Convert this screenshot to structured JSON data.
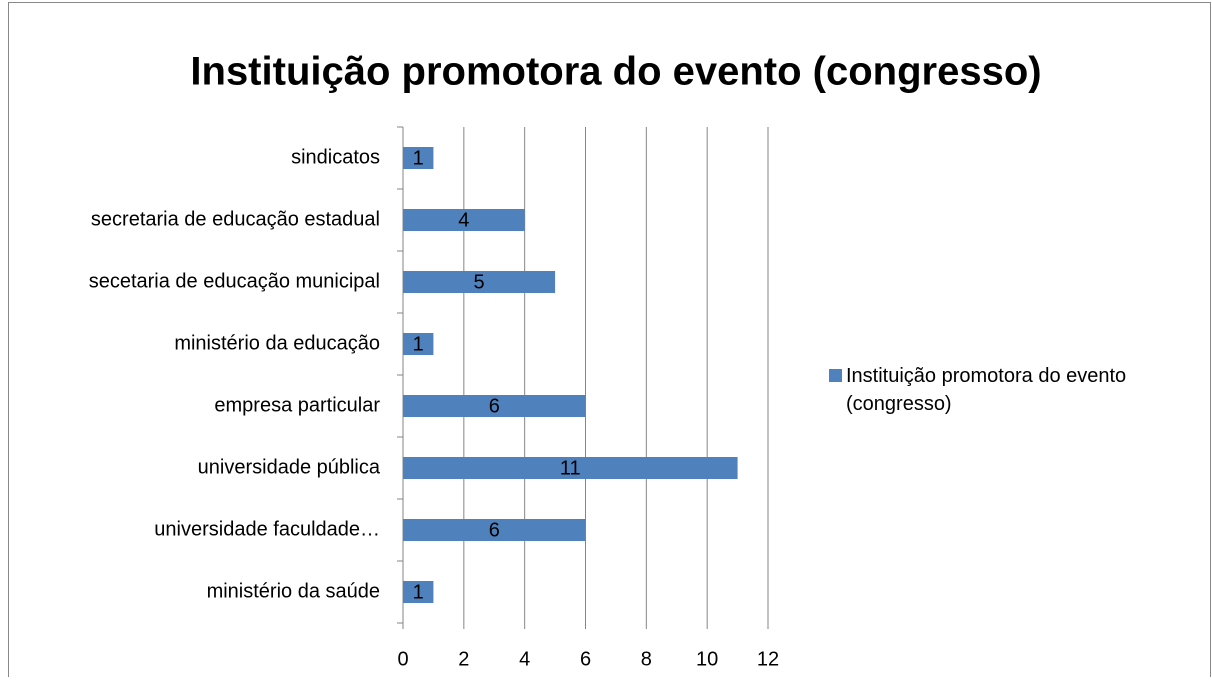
{
  "chart_data": {
    "type": "barh",
    "title": "Instituição promotora do evento (congresso)",
    "categories": [
      "sindicatos",
      "secretaria de educação estadual",
      "secetaria de educação municipal",
      "ministério da educação",
      "empresa particular",
      "universidade pública",
      "universidade faculdade…",
      "ministério da saúde"
    ],
    "series": [
      {
        "name": "Instituição promotora do evento (congresso)",
        "color": "#4f81bd",
        "values": [
          1,
          4,
          5,
          1,
          6,
          11,
          6,
          1
        ]
      }
    ],
    "xlim": [
      0,
      12
    ],
    "xticks": [
      0,
      2,
      4,
      6,
      8,
      10,
      12
    ],
    "grid": true,
    "legend": "right"
  }
}
